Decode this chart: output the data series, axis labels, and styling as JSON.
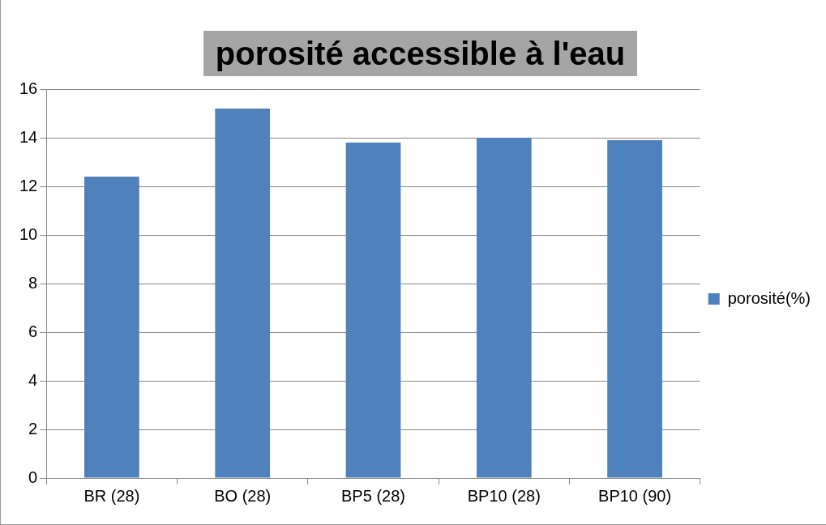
{
  "chart_data": {
    "type": "bar",
    "title": "porosité accessible à l'eau",
    "categories": [
      "BR (28)",
      "BO (28)",
      "BP5 (28)",
      "BP10 (28)",
      "BP10 (90)"
    ],
    "series": [
      {
        "name": "porosité(%)",
        "color": "#4f81bd",
        "values": [
          12.4,
          15.2,
          13.8,
          14.0,
          13.9
        ]
      }
    ],
    "ylim": [
      0,
      16
    ],
    "yticks": [
      0,
      2,
      4,
      6,
      8,
      10,
      12,
      14,
      16
    ],
    "grid": "y",
    "legend": "right"
  }
}
